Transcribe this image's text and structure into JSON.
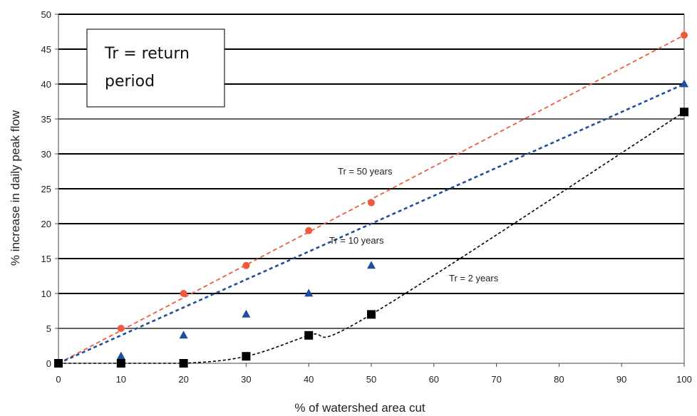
{
  "chart_data": {
    "type": "line",
    "xlabel": "% of watershed area cut",
    "ylabel": "% increase in daily peak flow",
    "x_ticks": [
      0,
      10,
      20,
      30,
      40,
      50,
      60,
      70,
      80,
      90,
      100
    ],
    "y_ticks": [
      0,
      5,
      10,
      15,
      20,
      25,
      30,
      35,
      40,
      45,
      50
    ],
    "xlim": [
      0,
      100
    ],
    "ylim": [
      0,
      50
    ],
    "grid": "horizontal",
    "annotation": [
      "Tr = return",
      "period"
    ],
    "series": [
      {
        "name": "Tr = 50 years",
        "color": "#f05a3c",
        "marker": "circle",
        "x": [
          0,
          10,
          20,
          30,
          40,
          50,
          100
        ],
        "y": [
          0,
          5,
          10,
          14,
          19,
          23,
          47
        ]
      },
      {
        "name": "Tr = 10 years",
        "color": "#1f4e9c",
        "marker": "triangle",
        "x": [
          0,
          10,
          20,
          30,
          40,
          50,
          100
        ],
        "y": [
          0,
          1,
          4,
          7,
          10,
          14,
          40
        ]
      },
      {
        "name": "Tr = 2 years",
        "color": "#000000",
        "marker": "square",
        "x": [
          0,
          10,
          20,
          30,
          40,
          50,
          100
        ],
        "y": [
          0,
          0,
          0,
          1,
          4,
          7,
          36
        ]
      }
    ]
  }
}
